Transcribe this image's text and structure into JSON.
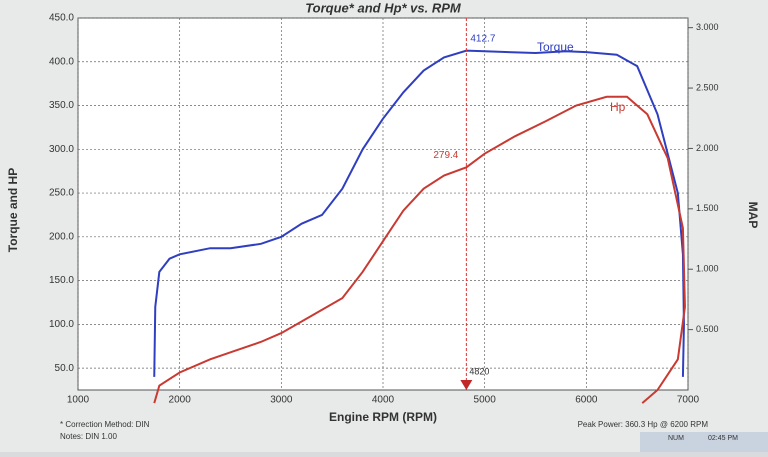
{
  "chart_data": {
    "type": "line",
    "title": "Torque* and Hp* vs. RPM",
    "x_label": "Engine RPM (RPM)",
    "y_label": "Torque and HP",
    "y2_label": "MAP",
    "xlim": [
      1000,
      7000
    ],
    "xticks": [
      1000,
      2000,
      3000,
      4000,
      5000,
      6000,
      7000
    ],
    "ylim": [
      25,
      450
    ],
    "yticks": [
      {
        "value": 50,
        "label": "50.0"
      },
      {
        "value": 100,
        "label": "100.0"
      },
      {
        "value": 150,
        "label": "150.0"
      },
      {
        "value": 200,
        "label": "200.0"
      },
      {
        "value": 250,
        "label": "250.0"
      },
      {
        "value": 300,
        "label": "300.0"
      },
      {
        "value": 350,
        "label": "350.0"
      },
      {
        "value": 400,
        "label": "400.0"
      },
      {
        "value": 450,
        "label": "450.0"
      }
    ],
    "y2lim": [
      0,
      3.08
    ],
    "y2ticks": [
      {
        "value": 0.5,
        "label": "0.500"
      },
      {
        "value": 1,
        "label": "1.000"
      },
      {
        "value": 1.5,
        "label": "1.500"
      },
      {
        "value": 2,
        "label": "2.000"
      },
      {
        "value": 2.5,
        "label": "2.500"
      },
      {
        "value": 3,
        "label": "3.000"
      }
    ],
    "grid": true,
    "cursor_x": 4820,
    "series": [
      {
        "name": "Torque",
        "color": "#2f3fc0",
        "x": [
          1750,
          1760,
          1800,
          1900,
          2000,
          2300,
          2500,
          2800,
          3000,
          3200,
          3400,
          3600,
          3800,
          4000,
          4200,
          4400,
          4600,
          4820,
          5000,
          5500,
          5800,
          6000,
          6300,
          6500,
          6700,
          6900,
          6950,
          6960,
          6950
        ],
        "values": [
          40,
          120,
          160,
          175,
          180,
          187,
          187,
          192,
          200,
          215,
          225,
          255,
          300,
          335,
          365,
          390,
          405,
          412.7,
          412,
          410,
          412,
          411,
          408,
          395,
          340,
          250,
          180,
          100,
          40
        ]
      },
      {
        "name": "Hp",
        "color": "#c83a32",
        "x": [
          1750,
          1800,
          2000,
          2300,
          2500,
          2800,
          3000,
          3300,
          3600,
          3800,
          4000,
          4200,
          4400,
          4600,
          4820,
          5000,
          5300,
          5600,
          5900,
          6200,
          6400,
          6600,
          6800,
          6950,
          6970,
          6900,
          6700,
          6550
        ],
        "values": [
          10,
          30,
          45,
          60,
          68,
          80,
          90,
          110,
          130,
          160,
          195,
          230,
          255,
          270,
          279.4,
          295,
          315,
          332,
          350,
          360,
          360,
          340,
          290,
          210,
          120,
          60,
          25,
          10
        ]
      }
    ],
    "footer_left": [
      "* Correction Method: DIN",
      "Notes: DIN 1.00"
    ],
    "footer_right": "Peak Power: 360.3 Hp @ 6200 RPM",
    "status": [
      "NUM",
      "02:45 PM"
    ]
  }
}
